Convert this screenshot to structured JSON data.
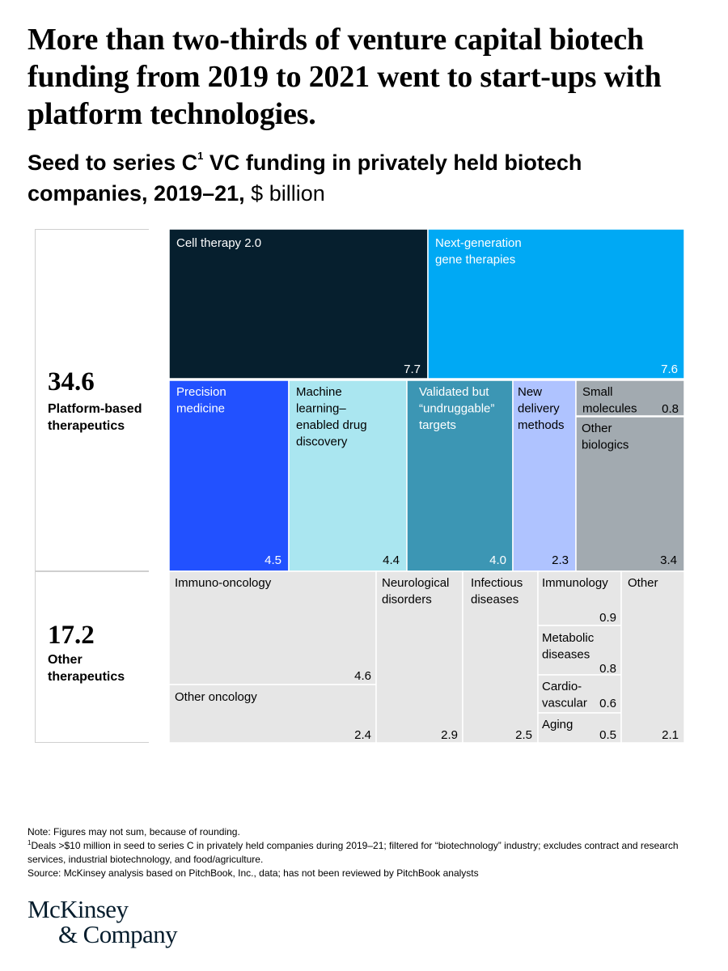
{
  "headline": "More than two-thirds of venture capital biotech funding from 2019 to 2021 went to start-ups with platform technologies.",
  "subtitle": {
    "main": "Seed to series C",
    "sup": "1",
    "main2": " VC funding in privately held biotech companies, 2019–21, ",
    "unit": "$ billion"
  },
  "groups": [
    {
      "total": "34.6",
      "label_line1": "Platform-based",
      "label_line2": "therapeutics"
    },
    {
      "total": "17.2",
      "label_line1": "Other",
      "label_line2": "therapeutics"
    }
  ],
  "colors": {
    "cell_therapy": "#061f2e",
    "gene_therapies": "#00a9f4",
    "precision_medicine": "#2251ff",
    "machine_learning": "#aae6f0",
    "validated_targets": "#3c96b4",
    "new_delivery": "#afc3ff",
    "small_molecules": "#a2aab0",
    "other_group": "#e6e6e6",
    "gap": "#ffffff"
  },
  "chart_data": {
    "type": "treemap",
    "unit": "$ billion",
    "groups": [
      {
        "name": "Platform-based therapeutics",
        "total": 34.6,
        "items": [
          {
            "label": "Cell therapy 2.0",
            "value": 7.7,
            "value_label": "7.7"
          },
          {
            "label": "Next-generation gene therapies",
            "value": 7.6,
            "value_label": "7.6"
          },
          {
            "label": "Precision medicine",
            "value": 4.5,
            "value_label": "4.5"
          },
          {
            "label": "Machine learning–enabled drug discovery",
            "value": 4.4,
            "value_label": "4.4"
          },
          {
            "label": "Validated but “undruggable” targets",
            "value": 4.0,
            "value_label": "4.0"
          },
          {
            "label": "New delivery methods",
            "value": 2.3,
            "value_label": "2.3"
          },
          {
            "label": "Small molecules",
            "value": 0.8,
            "value_label": "0.8"
          },
          {
            "label": "Other biologics",
            "value": 3.4,
            "value_label": "3.4"
          }
        ]
      },
      {
        "name": "Other therapeutics",
        "total": 17.2,
        "items": [
          {
            "label": "Immuno-oncology",
            "value": 4.6,
            "value_label": "4.6"
          },
          {
            "label": "Other oncology",
            "value": 2.4,
            "value_label": "2.4"
          },
          {
            "label": "Neurological disorders",
            "value": 2.9,
            "value_label": "2.9"
          },
          {
            "label": "Infectious diseases",
            "value": 2.5,
            "value_label": "2.5"
          },
          {
            "label": "Immunology",
            "value": 0.9,
            "value_label": "0.9"
          },
          {
            "label": "Metabolic diseases",
            "value": 0.8,
            "value_label": "0.8"
          },
          {
            "label": "Cardio-vascular",
            "value": 0.6,
            "value_label": "0.6"
          },
          {
            "label": "Aging",
            "value": 0.5,
            "value_label": "0.5"
          },
          {
            "label": "Other",
            "value": 2.1,
            "value_label": "2.1"
          }
        ]
      }
    ]
  },
  "footnotes": {
    "note": "Note: Figures may not sum, because of rounding.",
    "fn_mark": "1",
    "fn_text": "Deals >$10 million in seed to series C in privately held companies during 2019–21; filtered for “biotechnology” industry; excludes contract and research services, industrial biotechnology, and food/agriculture.",
    "source": "Source: McKinsey analysis based on PitchBook, Inc., data; has not been reviewed by PitchBook analysts"
  },
  "logo": {
    "line1": "McKinsey",
    "line2": "& Company"
  }
}
